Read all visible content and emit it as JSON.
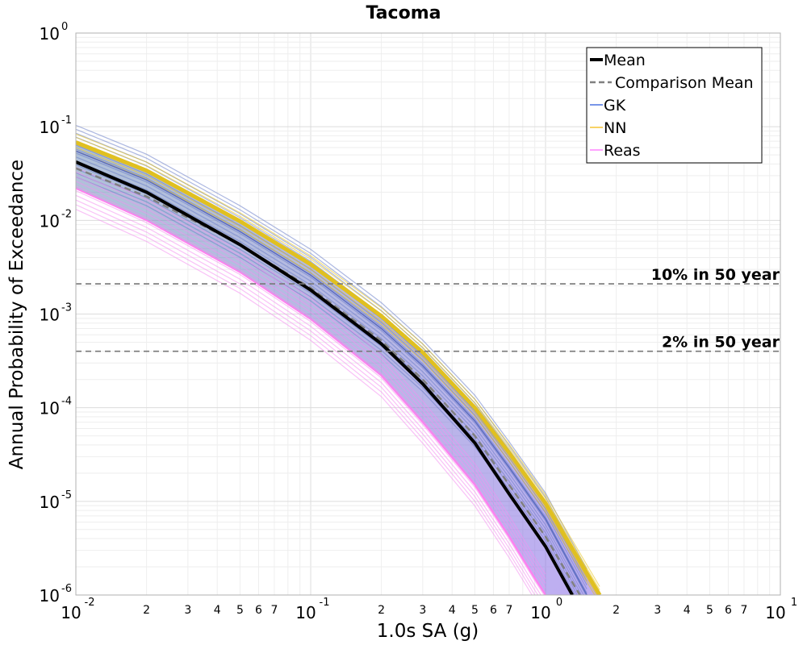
{
  "chart_data": {
    "type": "line",
    "title": "Tacoma",
    "xlabel": "1.0s SA (g)",
    "ylabel": "Annual Probability of Exceedance",
    "xscale": "log",
    "yscale": "log",
    "xlim": [
      0.01,
      10
    ],
    "ylim": [
      1e-06,
      1
    ],
    "grid": true,
    "legend_position": "top-right",
    "x_major_ticks": [
      {
        "base": "10",
        "exp": "-2"
      },
      {
        "base": "10",
        "exp": "-1"
      },
      {
        "base": "10",
        "exp": "0"
      },
      {
        "base": "10",
        "exp": "1"
      }
    ],
    "y_major_ticks": [
      {
        "base": "10",
        "exp": "-6"
      },
      {
        "base": "10",
        "exp": "-5"
      },
      {
        "base": "10",
        "exp": "-4"
      },
      {
        "base": "10",
        "exp": "-3"
      },
      {
        "base": "10",
        "exp": "-2"
      },
      {
        "base": "10",
        "exp": "-1"
      },
      {
        "base": "10",
        "exp": "0"
      }
    ],
    "x_minor_tick_labels": [
      "2",
      "3",
      "4",
      "5",
      "6",
      "7"
    ],
    "reference_lines": [
      {
        "label": "10% in 50 year",
        "y": 0.0021
      },
      {
        "label": "2% in 50 year",
        "y": 0.0004
      }
    ],
    "legend": [
      {
        "label": "Mean",
        "style": "solid-thick",
        "color": "#000000"
      },
      {
        "label": "Comparison Mean",
        "style": "dashed",
        "color": "#808080"
      },
      {
        "label": "GK",
        "style": "thin",
        "color": "#1f4fd8"
      },
      {
        "label": "NN",
        "style": "thin",
        "color": "#f2b600"
      },
      {
        "label": "Reas",
        "style": "thin",
        "color": "#ff66ff"
      }
    ],
    "series": [
      {
        "name": "Mean",
        "color": "#000000",
        "x": [
          0.01,
          0.02,
          0.05,
          0.1,
          0.2,
          0.3,
          0.5,
          0.7,
          1.0,
          1.3
        ],
        "y": [
          0.042,
          0.02,
          0.0055,
          0.0018,
          0.00048,
          0.00018,
          4.2e-05,
          1.2e-05,
          3.3e-06,
          1e-06
        ]
      },
      {
        "name": "Comparison Mean",
        "color": "#808080",
        "x": [
          0.01,
          0.02,
          0.05,
          0.1,
          0.2,
          0.3,
          0.5,
          0.7,
          1.0,
          1.4
        ],
        "y": [
          0.036,
          0.018,
          0.0055,
          0.0019,
          0.00052,
          0.0002,
          5e-05,
          1.5e-05,
          4.2e-06,
          1e-06
        ]
      },
      {
        "name": "GK",
        "color": "#5b6bc0",
        "x": [
          0.01,
          0.02,
          0.05,
          0.1,
          0.2,
          0.3,
          0.5,
          0.7,
          1.0,
          1.5
        ],
        "y": [
          0.055,
          0.027,
          0.0076,
          0.0026,
          0.0007,
          0.00028,
          7.2e-05,
          2.3e-05,
          6.5e-06,
          1e-06
        ]
      },
      {
        "name": "NN",
        "color": "#e0c020",
        "x": [
          0.01,
          0.02,
          0.05,
          0.1,
          0.2,
          0.3,
          0.5,
          0.7,
          1.0,
          1.7
        ],
        "y": [
          0.068,
          0.034,
          0.0098,
          0.0034,
          0.00095,
          0.00039,
          0.0001,
          3.3e-05,
          9.5e-06,
          1e-06
        ]
      },
      {
        "name": "Reas",
        "color": "#ff7ff0",
        "x": [
          0.01,
          0.02,
          0.05,
          0.1,
          0.2,
          0.3,
          0.5,
          0.7,
          0.9,
          1.0
        ],
        "y": [
          0.022,
          0.01,
          0.0028,
          0.00088,
          0.00022,
          7e-05,
          1.5e-05,
          4.2e-06,
          1.5e-06,
          1e-06
        ]
      }
    ]
  }
}
